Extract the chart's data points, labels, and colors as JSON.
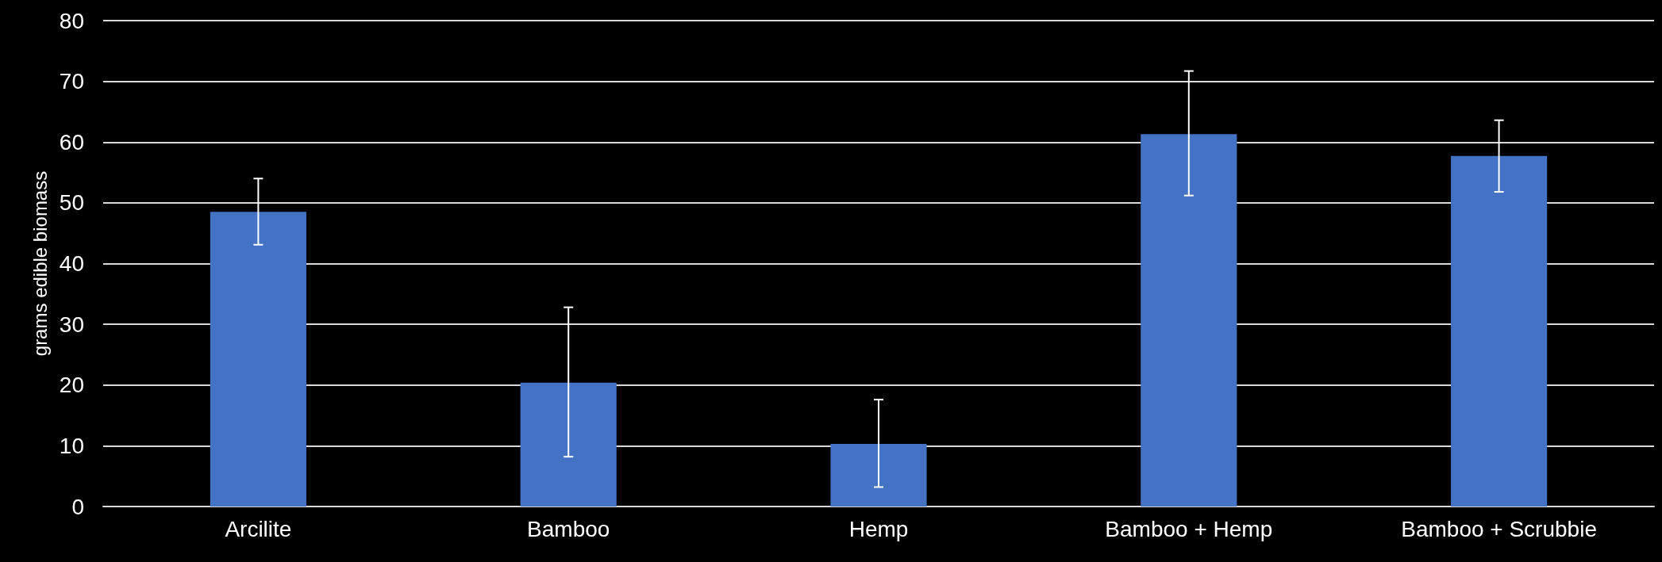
{
  "chart_data": {
    "type": "bar",
    "ylabel": "grams edible biomass",
    "categories": [
      "Arcilite",
      "Bamboo",
      "Hemp",
      "Bamboo + Hemp",
      "Bamboo + Scrubbie"
    ],
    "values": [
      48.5,
      20.4,
      10.3,
      61.3,
      57.7
    ],
    "errors": [
      [
        43.1,
        54.0
      ],
      [
        8.2,
        32.8
      ],
      [
        3.2,
        17.6
      ],
      [
        51.2,
        71.7
      ],
      [
        51.8,
        63.6
      ]
    ],
    "color": "#4472c4",
    "ylim": [
      0,
      80
    ],
    "yticks": [
      0,
      10,
      20,
      30,
      40,
      50,
      60,
      70,
      80
    ],
    "grid": true
  }
}
